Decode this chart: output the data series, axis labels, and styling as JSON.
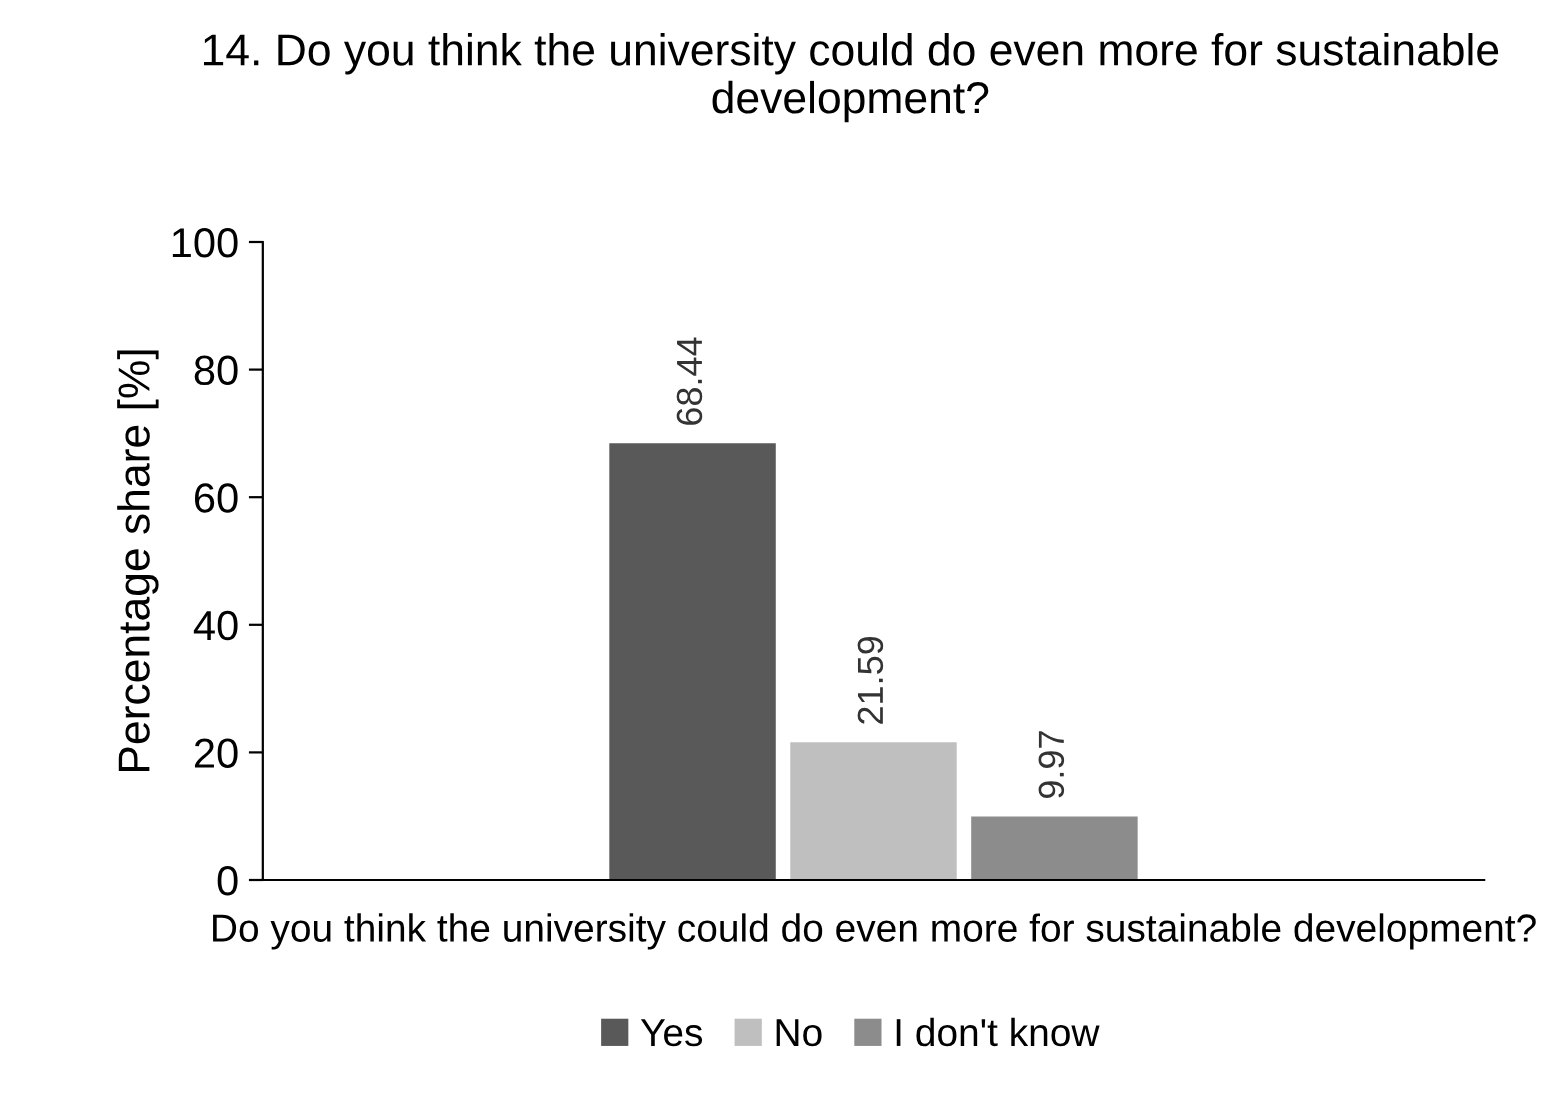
{
  "chart_data": {
    "type": "bar",
    "title": "14. Do you think the university could do even more for sustainable development?",
    "ylabel": "Percentage share [%]",
    "categories": [
      "Do you think the university could do even more for sustainable development?"
    ],
    "series": [
      {
        "name": "Yes",
        "color": "#595959",
        "values": [
          68.44
        ]
      },
      {
        "name": "No",
        "color": "#bfbfbf",
        "values": [
          21.59
        ]
      },
      {
        "name": "I don't know",
        "color": "#8c8c8c",
        "values": [
          9.97
        ]
      }
    ],
    "ylim": [
      0,
      100
    ],
    "yticks": [
      0,
      20,
      40,
      60,
      80,
      100
    ],
    "grid": false,
    "data_labels": true,
    "legend": "bottom"
  }
}
